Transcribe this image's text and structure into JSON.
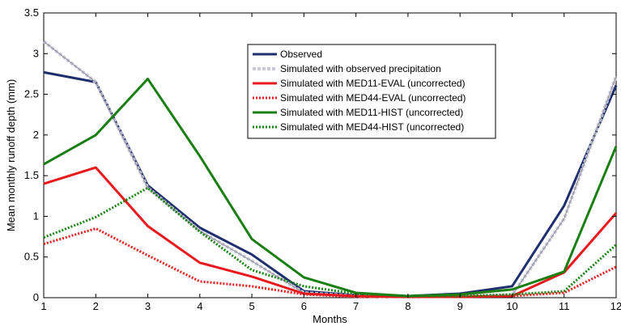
{
  "chart_data": {
    "type": "line",
    "xlabel": "Months",
    "ylabel": "Mean monthly runoff depth (mm)",
    "xlim": [
      1,
      12
    ],
    "ylim": [
      0,
      3.5
    ],
    "x_ticks": [
      "1",
      "2",
      "3",
      "4",
      "5",
      "6",
      "7",
      "8",
      "9",
      "10",
      "11",
      "12"
    ],
    "y_ticks": [
      "0",
      "0.5",
      "1",
      "1.5",
      "2",
      "2.5",
      "3",
      "3.5"
    ],
    "grid": false,
    "legend_position": "top-center",
    "x": [
      1,
      2,
      3,
      4,
      5,
      6,
      7,
      8,
      9,
      10,
      11,
      12
    ],
    "series": [
      {
        "name": "Observed",
        "color": "#1f2f6e",
        "style": "solid",
        "width": 3,
        "values": [
          2.77,
          2.65,
          1.38,
          0.86,
          0.53,
          0.08,
          0.03,
          0.02,
          0.05,
          0.14,
          1.13,
          2.61
        ]
      },
      {
        "name": "Simulated with observed precipitation",
        "color": "#b8b8c8",
        "style": "dashed-grey",
        "width": 2,
        "values": [
          3.15,
          2.65,
          1.35,
          0.82,
          0.45,
          0.06,
          0.02,
          0.01,
          0.02,
          0.03,
          0.97,
          2.72
        ]
      },
      {
        "name": "Simulated with MED11-EVAL (uncorrected)",
        "color": "#e8191c",
        "style": "solid",
        "width": 3,
        "values": [
          1.4,
          1.6,
          0.88,
          0.43,
          0.26,
          0.05,
          0.02,
          0.01,
          0.01,
          0.02,
          0.31,
          1.04
        ]
      },
      {
        "name": "Simulated with MED44-EVAL (uncorrected)",
        "color": "#e8191c",
        "style": "dotted",
        "width": 3,
        "values": [
          0.66,
          0.85,
          0.52,
          0.2,
          0.14,
          0.04,
          0.01,
          0.01,
          0.01,
          0.02,
          0.06,
          0.38
        ]
      },
      {
        "name": "Simulated with MED11-HIST (uncorrected)",
        "color": "#1a7f12",
        "style": "solid",
        "width": 3,
        "values": [
          1.64,
          2.0,
          2.69,
          1.74,
          0.72,
          0.25,
          0.06,
          0.02,
          0.04,
          0.1,
          0.32,
          1.86
        ]
      },
      {
        "name": "Simulated with MED44-HIST (uncorrected)",
        "color": "#1a7f12",
        "style": "dotted",
        "width": 3,
        "values": [
          0.74,
          0.99,
          1.35,
          0.81,
          0.34,
          0.14,
          0.05,
          0.02,
          0.02,
          0.04,
          0.08,
          0.65
        ]
      }
    ]
  }
}
